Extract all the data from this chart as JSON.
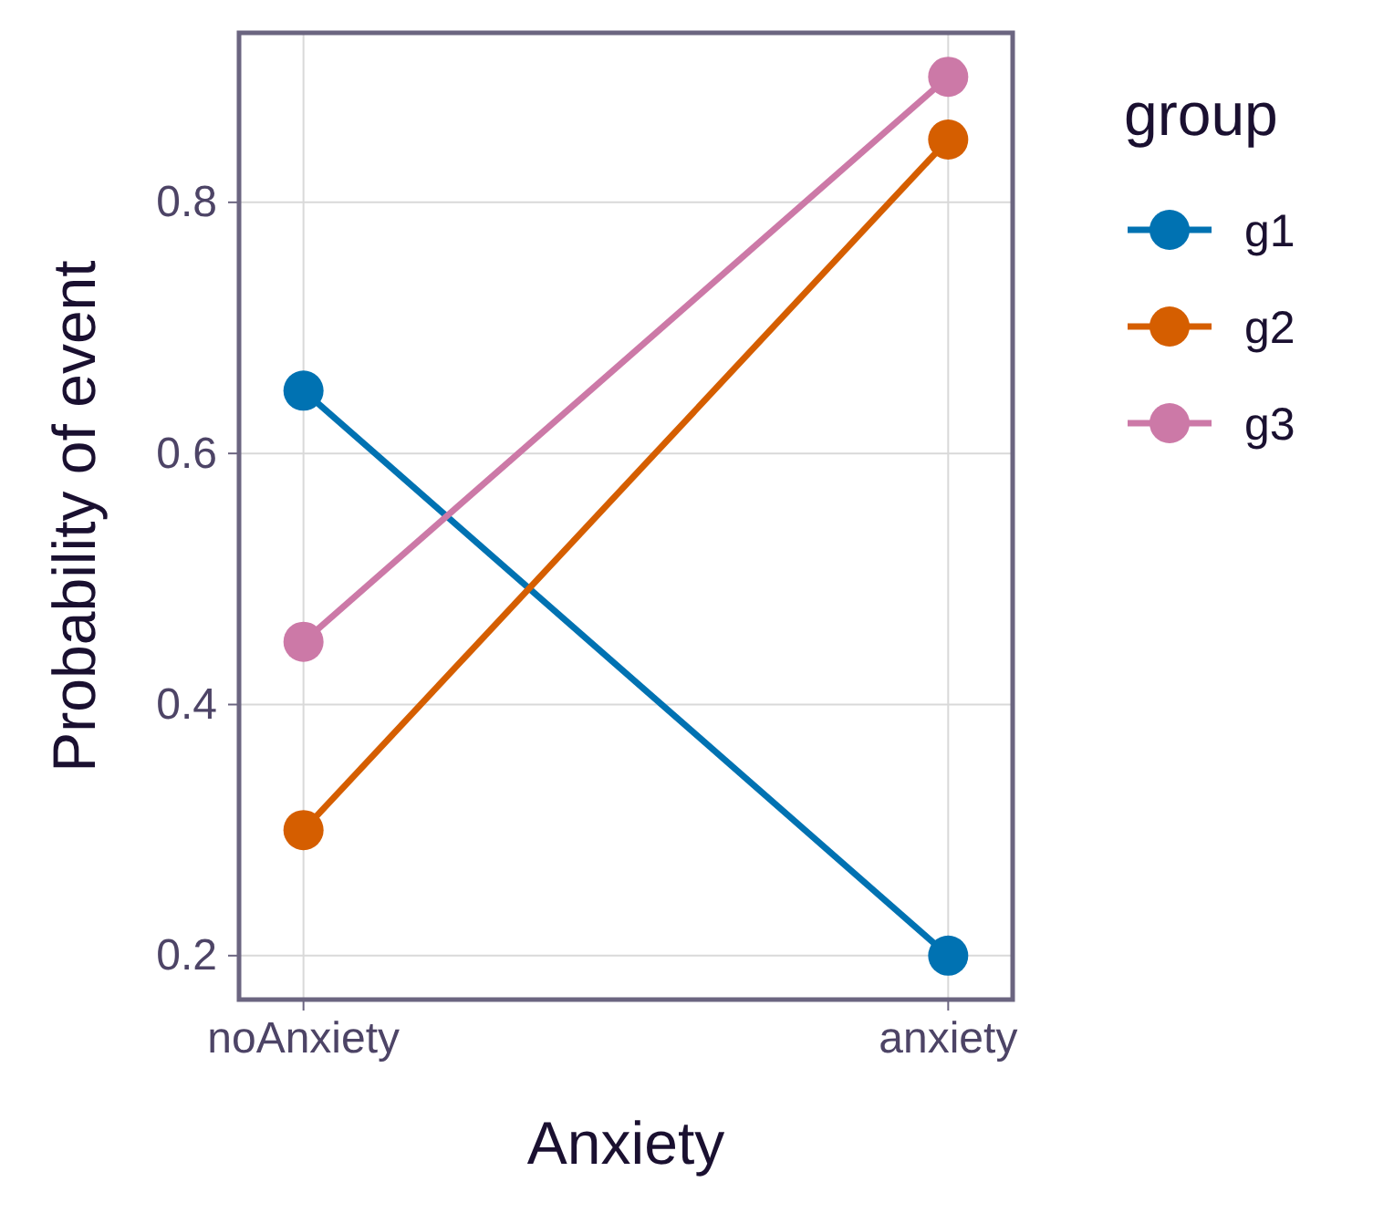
{
  "chart_data": {
    "type": "line",
    "xlabel": "Anxiety",
    "ylabel": "Probability of event",
    "legend_title": "group",
    "categories": [
      "noAnxiety",
      "anxiety"
    ],
    "series": [
      {
        "name": "g1",
        "color": "#0072b2",
        "values": [
          0.65,
          0.2
        ]
      },
      {
        "name": "g2",
        "color": "#d55e00",
        "values": [
          0.3,
          0.85
        ]
      },
      {
        "name": "g3",
        "color": "#cc79a7",
        "values": [
          0.45,
          0.9
        ]
      }
    ],
    "ylim": [
      0.165,
      0.935
    ],
    "yticks": [
      0.2,
      0.4,
      0.6,
      0.8
    ],
    "grid": true,
    "legend": "right",
    "marker": "circle",
    "line_style": "solid"
  }
}
